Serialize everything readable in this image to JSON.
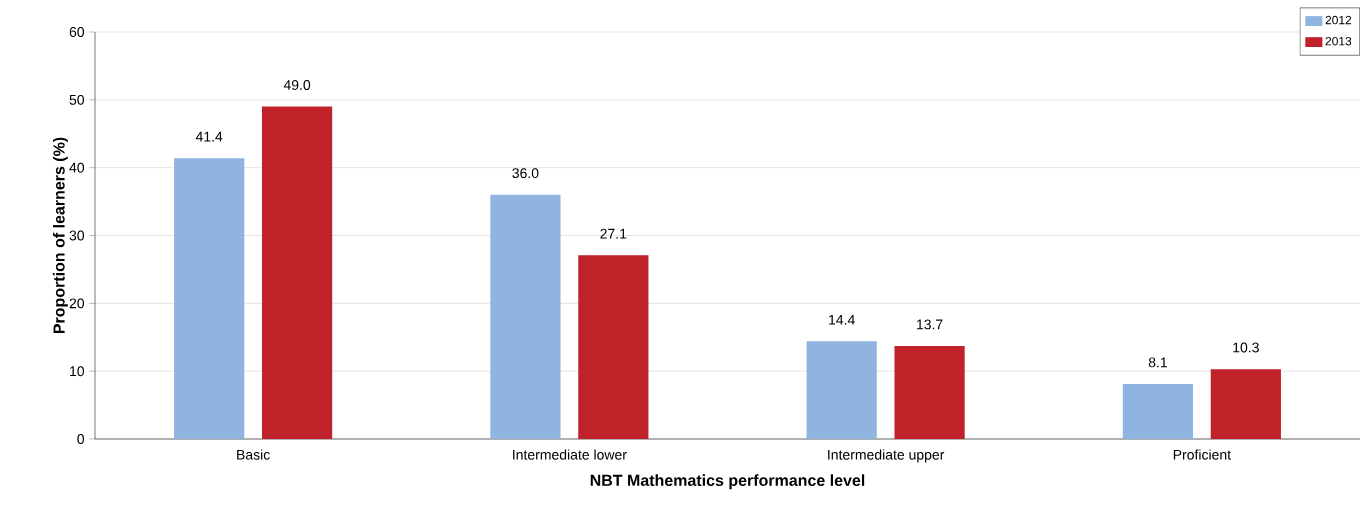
{
  "chart_data": {
    "type": "bar",
    "xlabel": "NBT Mathematics performance level",
    "ylabel": "Proportion of learners (%)",
    "categories": [
      "Basic",
      "Intermediate lower",
      "Intermediate upper",
      "Proficient"
    ],
    "series": [
      {
        "name": "2012",
        "color": "#8eb4df",
        "values": [
          41.4,
          36.0,
          14.4,
          8.1
        ],
        "value_labels": [
          "41.4",
          "36.0",
          "14.4",
          "8.1"
        ]
      },
      {
        "name": "2013",
        "color": "#c0222a",
        "values": [
          49.0,
          27.1,
          13.7,
          10.3
        ],
        "value_labels": [
          "49.0",
          "27.1",
          "13.7",
          "10.3"
        ]
      }
    ],
    "ylim": [
      0,
      60
    ],
    "yticks": [
      0,
      10,
      20,
      30,
      40,
      50,
      60
    ],
    "grid": "y",
    "legend": "top right"
  }
}
